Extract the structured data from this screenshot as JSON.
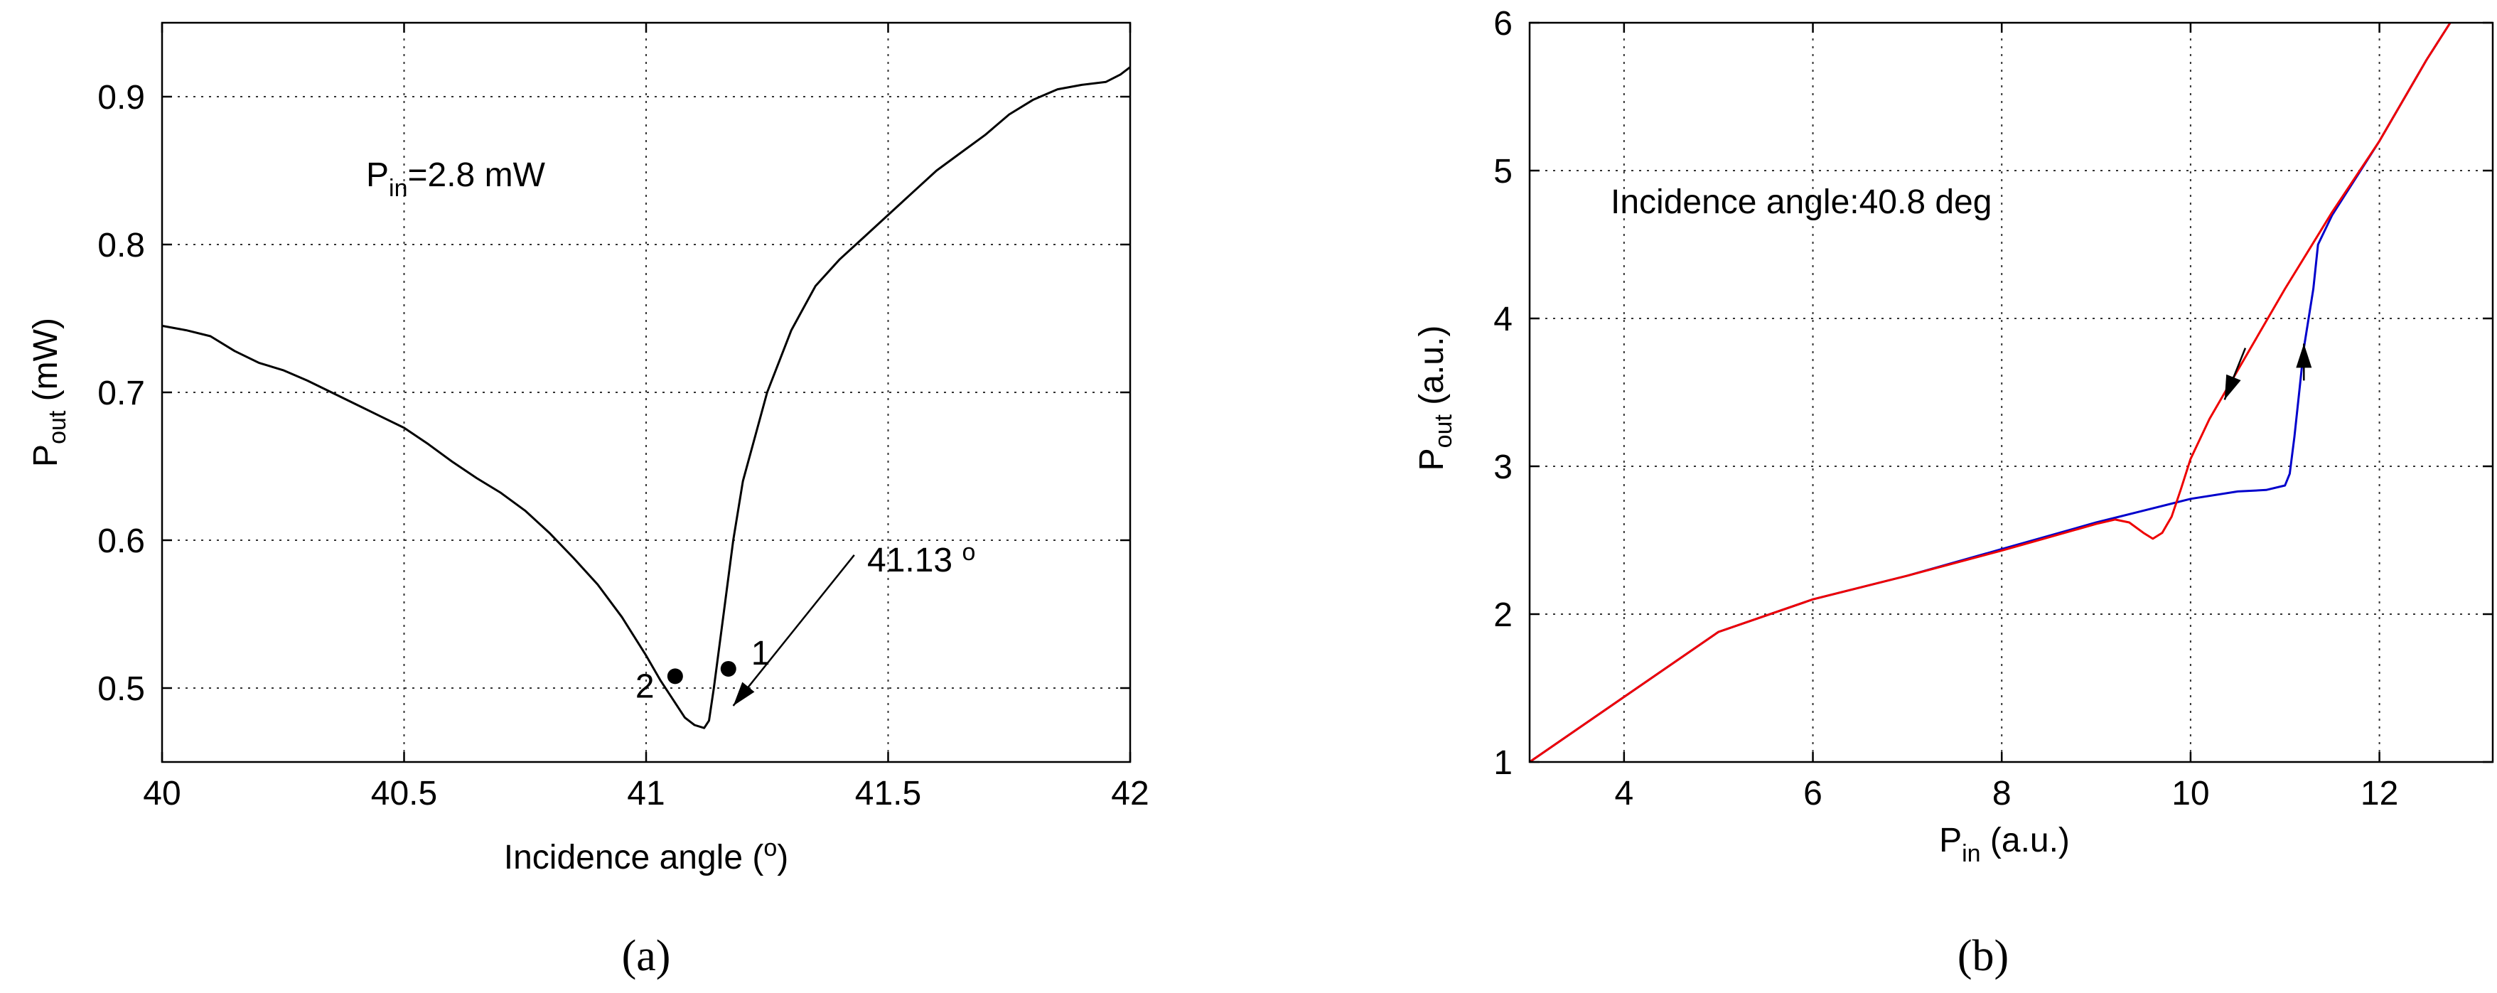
{
  "chart_data": [
    {
      "panel": "(a)",
      "type": "line",
      "xlabel": "Incidence angle (",
      "xlabel_sup": "o",
      "xlabel_tail": ")",
      "ylabel": "P",
      "ylabel_sub": "out",
      "ylabel_tail": " (mW)",
      "xlim": [
        40,
        42
      ],
      "ylim": [
        0.45,
        0.95
      ],
      "xticks": [
        40,
        40.5,
        41,
        41.5,
        42
      ],
      "xtick_labels": [
        "40",
        "40.5",
        "41",
        "41.5",
        "42"
      ],
      "yticks": [
        0.5,
        0.6,
        0.7,
        0.8,
        0.9
      ],
      "ytick_labels": [
        "0.5",
        "0.6",
        "0.7",
        "0.8",
        "0.9"
      ],
      "grid": true,
      "annotation_pin": {
        "main": "P",
        "sub": "in",
        "tail": "=2.8 mW"
      },
      "annotation_angle": {
        "text": "41.13 ",
        "sup": "o"
      },
      "series": [
        {
          "color": "#000000",
          "x": [
            40.0,
            40.05,
            40.1,
            40.15,
            40.2,
            40.25,
            40.3,
            40.35,
            40.4,
            40.45,
            40.5,
            40.55,
            40.6,
            40.65,
            40.7,
            40.75,
            40.8,
            40.85,
            40.9,
            40.95,
            41.0,
            41.03,
            41.06,
            41.08,
            41.1,
            41.12,
            41.13,
            41.14,
            41.16,
            41.18,
            41.2,
            41.25,
            41.3,
            41.35,
            41.4,
            41.45,
            41.5,
            41.55,
            41.6,
            41.65,
            41.7,
            41.75,
            41.8,
            41.85,
            41.9,
            41.95,
            41.98,
            42.0
          ],
          "y": [
            0.745,
            0.742,
            0.738,
            0.728,
            0.72,
            0.715,
            0.708,
            0.7,
            0.692,
            0.684,
            0.676,
            0.665,
            0.653,
            0.642,
            0.632,
            0.62,
            0.605,
            0.588,
            0.57,
            0.548,
            0.522,
            0.505,
            0.49,
            0.48,
            0.475,
            0.473,
            0.478,
            0.5,
            0.55,
            0.6,
            0.64,
            0.7,
            0.742,
            0.772,
            0.79,
            0.805,
            0.82,
            0.835,
            0.85,
            0.862,
            0.874,
            0.888,
            0.898,
            0.905,
            0.908,
            0.91,
            0.915,
            0.92
          ]
        }
      ],
      "points": [
        {
          "label": "1",
          "x": 41.17,
          "y": 0.513
        },
        {
          "label": "2",
          "x": 41.06,
          "y": 0.508
        }
      ],
      "arrow": {
        "from": [
          41.43,
          0.59
        ],
        "to": [
          41.18,
          0.488
        ]
      }
    },
    {
      "panel": "(b)",
      "type": "line",
      "xlabel": "P",
      "xlabel_sub": "in",
      "xlabel_tail": " (a.u.)",
      "ylabel": "P",
      "ylabel_sub": "out",
      "ylabel_tail": " (a.u.)",
      "xlim": [
        3,
        13.2
      ],
      "ylim": [
        1,
        6
      ],
      "xticks": [
        4,
        6,
        8,
        10,
        12
      ],
      "xtick_labels": [
        "4",
        "6",
        "8",
        "10",
        "12"
      ],
      "yticks": [
        1,
        2,
        3,
        4,
        5,
        6
      ],
      "ytick_labels": [
        "1",
        "2",
        "3",
        "4",
        "5",
        "6"
      ],
      "grid": true,
      "annotation": "Incidence angle:40.8 deg",
      "series": [
        {
          "color": "#0000cc",
          "x": [
            3.0,
            4,
            5,
            6,
            7,
            8,
            9,
            9.5,
            10,
            10.5,
            10.8,
            11.0,
            11.05,
            11.1,
            11.15,
            11.2,
            11.3,
            11.35,
            11.5,
            12.0,
            12.5,
            12.75
          ],
          "y": [
            1.0,
            1.44,
            1.88,
            2.1,
            2.26,
            2.44,
            2.62,
            2.7,
            2.78,
            2.83,
            2.84,
            2.87,
            2.95,
            3.2,
            3.5,
            3.8,
            4.2,
            4.5,
            4.7,
            5.2,
            5.75,
            6.0
          ]
        },
        {
          "color": "#ee0000",
          "x": [
            3.0,
            4,
            5,
            6,
            7,
            8,
            9,
            9.2,
            9.35,
            9.5,
            9.6,
            9.7,
            9.8,
            9.9,
            10.0,
            10.2,
            10.5,
            11.0,
            11.5,
            12.0,
            12.5,
            12.75
          ],
          "y": [
            1.0,
            1.44,
            1.88,
            2.1,
            2.26,
            2.43,
            2.61,
            2.64,
            2.62,
            2.55,
            2.51,
            2.55,
            2.66,
            2.85,
            3.05,
            3.32,
            3.65,
            4.2,
            4.72,
            5.2,
            5.75,
            6.0
          ]
        }
      ],
      "arrows": [
        {
          "color": "#000000",
          "from": [
            10.58,
            3.8
          ],
          "to": [
            10.36,
            3.45
          ]
        },
        {
          "color": "#000000",
          "from": [
            11.2,
            3.58
          ],
          "to": [
            11.2,
            3.83
          ]
        }
      ]
    }
  ]
}
